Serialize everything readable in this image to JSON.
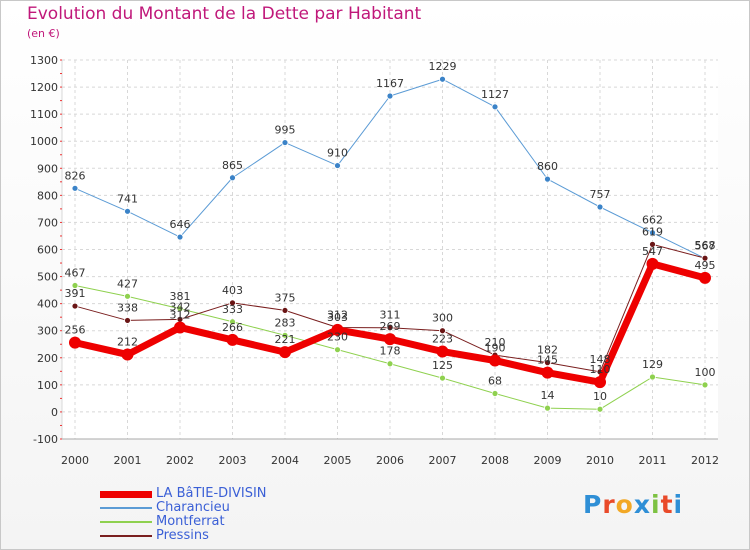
{
  "title": "Evolution du Montant de la Dette par Habitant",
  "unit": "(en €)",
  "logo": {
    "text": "Proxiti",
    "colors": [
      "#2f8fd6",
      "#e94a2a",
      "#f2a825",
      "#2f8fd6",
      "#7dc242",
      "#e94a2a",
      "#2f8fd6"
    ]
  },
  "chart_data": {
    "type": "line",
    "title": "Evolution du Montant de la Dette par Habitant",
    "ylabel": "(en €)",
    "xlabel": "",
    "x": [
      "2000",
      "2001",
      "2002",
      "2003",
      "2004",
      "2005",
      "2006",
      "2007",
      "2008",
      "2009",
      "2010",
      "2011",
      "2012"
    ],
    "ylim": [
      -100,
      1300
    ],
    "yticks": [
      -100,
      0,
      100,
      200,
      300,
      400,
      500,
      600,
      700,
      800,
      900,
      1000,
      1100,
      1200,
      1300
    ],
    "grid": true,
    "legend": "bottom-left",
    "series": [
      {
        "name": "LA BâTIE-DIVISIN",
        "color": "#ee0000",
        "values": [
          256,
          212,
          312,
          266,
          221,
          303,
          269,
          223,
          190,
          145,
          110,
          547,
          495
        ]
      },
      {
        "name": "Charancieu",
        "color": "#5b9bd5",
        "values": [
          826,
          741,
          646,
          865,
          995,
          910,
          1167,
          1229,
          1127,
          860,
          757,
          662,
          567
        ]
      },
      {
        "name": "Montferrat",
        "color": "#8fd14f",
        "values": [
          467,
          427,
          381,
          333,
          283,
          230,
          178,
          125,
          68,
          14,
          10,
          129,
          100
        ]
      },
      {
        "name": "Pressins",
        "color": "#7a1f1f",
        "values": [
          391,
          338,
          342,
          403,
          375,
          312,
          311,
          300,
          210,
          182,
          148,
          619,
          568
        ]
      }
    ]
  }
}
